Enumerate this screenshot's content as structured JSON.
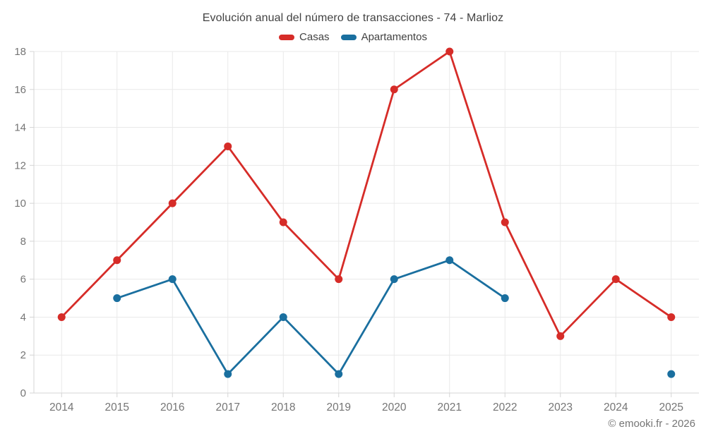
{
  "header": {
    "title": "Evolución anual del número de transacciones - 74 - Marlioz"
  },
  "legend": [
    {
      "label": "Casas",
      "color": "#d62c28"
    },
    {
      "label": "Apartamentos",
      "color": "#1a6f9f"
    }
  ],
  "footer": {
    "copyright": "© emooki.fr - 2026"
  },
  "colors": {
    "grid": "#e9e9e9",
    "axis": "#d4d4d4",
    "tick_label": "#757575",
    "title_text": "#424242",
    "background": "#ffffff"
  },
  "chart_data": {
    "type": "line",
    "title": "Evolución anual del número de transacciones - 74 - Marlioz",
    "xlabel": "",
    "ylabel": "",
    "categories": [
      "2014",
      "2015",
      "2016",
      "2017",
      "2018",
      "2019",
      "2020",
      "2021",
      "2022",
      "2023",
      "2024",
      "2025"
    ],
    "series": [
      {
        "name": "Casas",
        "color": "#d62c28",
        "values": [
          4,
          7,
          10,
          13,
          9,
          6,
          16,
          18,
          9,
          3,
          6,
          4
        ]
      },
      {
        "name": "Apartamentos",
        "color": "#1a6f9f",
        "values": [
          null,
          5,
          6,
          1,
          4,
          1,
          6,
          7,
          5,
          null,
          null,
          1
        ]
      }
    ],
    "ylim": [
      0,
      18
    ],
    "ytick_step": 2,
    "yticks": [
      0,
      2,
      4,
      6,
      8,
      10,
      12,
      14,
      16,
      18
    ],
    "grid": true,
    "legend_position": "top",
    "marker_radius": 5.5,
    "line_width": 2.8
  }
}
